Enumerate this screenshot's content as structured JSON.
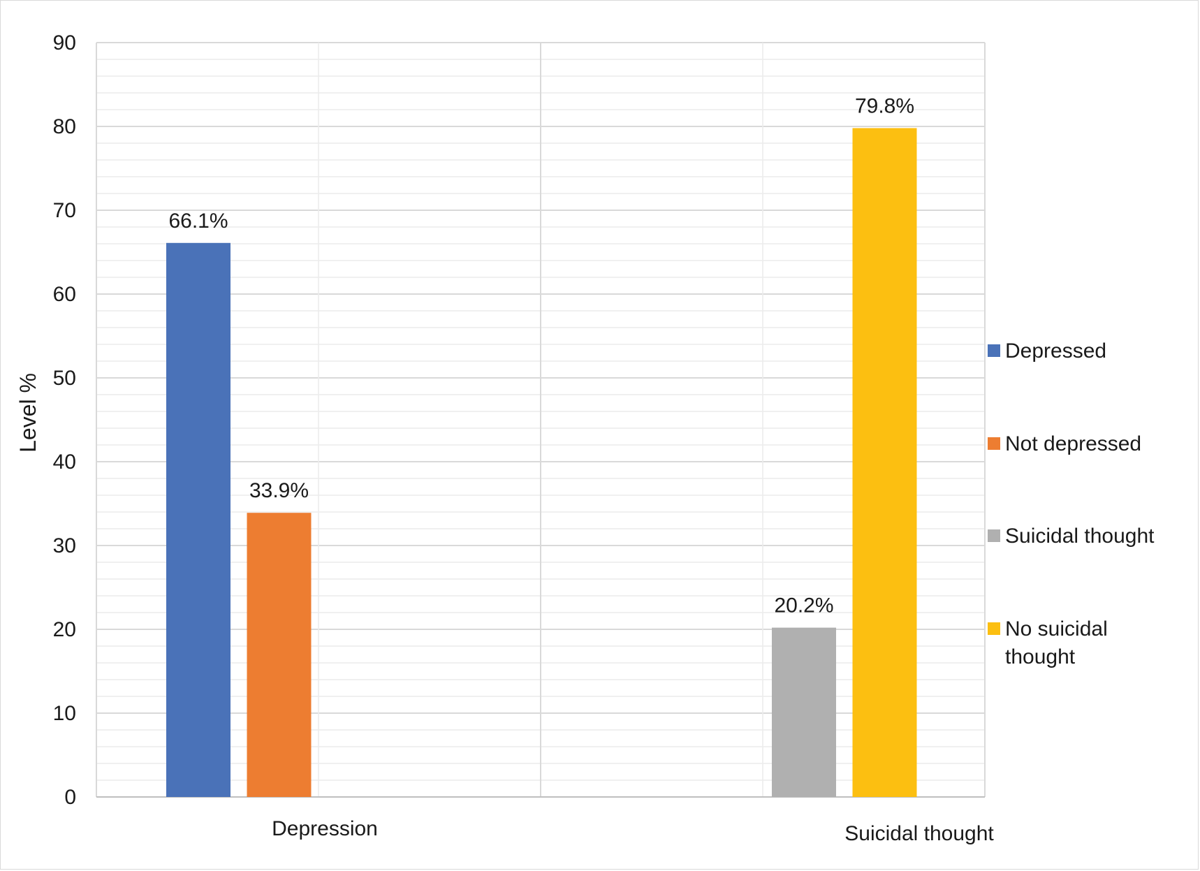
{
  "chart_data": {
    "type": "bar",
    "title": "",
    "xlabel": "",
    "ylabel": "Level %",
    "ylim": [
      0,
      90
    ],
    "y_ticks": [
      "0",
      "10",
      "20",
      "30",
      "40",
      "50",
      "60",
      "70",
      "80",
      "90"
    ],
    "grid": true,
    "legend_position": "right",
    "categories": [
      {
        "name": "Depression",
        "bars": [
          {
            "series": "Depressed",
            "value": 66.1,
            "label": "66.1%",
            "color": "#4a72b8"
          },
          {
            "series": "Not depressed",
            "value": 33.9,
            "label": "33.9%",
            "color": "#ed7d31"
          }
        ]
      },
      {
        "name": "Suicidal thought",
        "bars": [
          {
            "series": "Suicidal thought",
            "value": 20.2,
            "label": "20.2%",
            "color": "#b0b0b0"
          },
          {
            "series": "No suicidal thought",
            "value": 79.8,
            "label": "79.8%",
            "color": "#fcbf11"
          }
        ]
      }
    ],
    "legend": [
      {
        "lines": [
          "Depressed"
        ],
        "color": "#4a72b8"
      },
      {
        "lines": [
          "Not depressed"
        ],
        "color": "#ed7d31"
      },
      {
        "lines": [
          "Suicidal thought"
        ],
        "color": "#b0b0b0"
      },
      {
        "lines": [
          "No suicidal",
          "thought"
        ],
        "color": "#fcbf11"
      }
    ]
  }
}
